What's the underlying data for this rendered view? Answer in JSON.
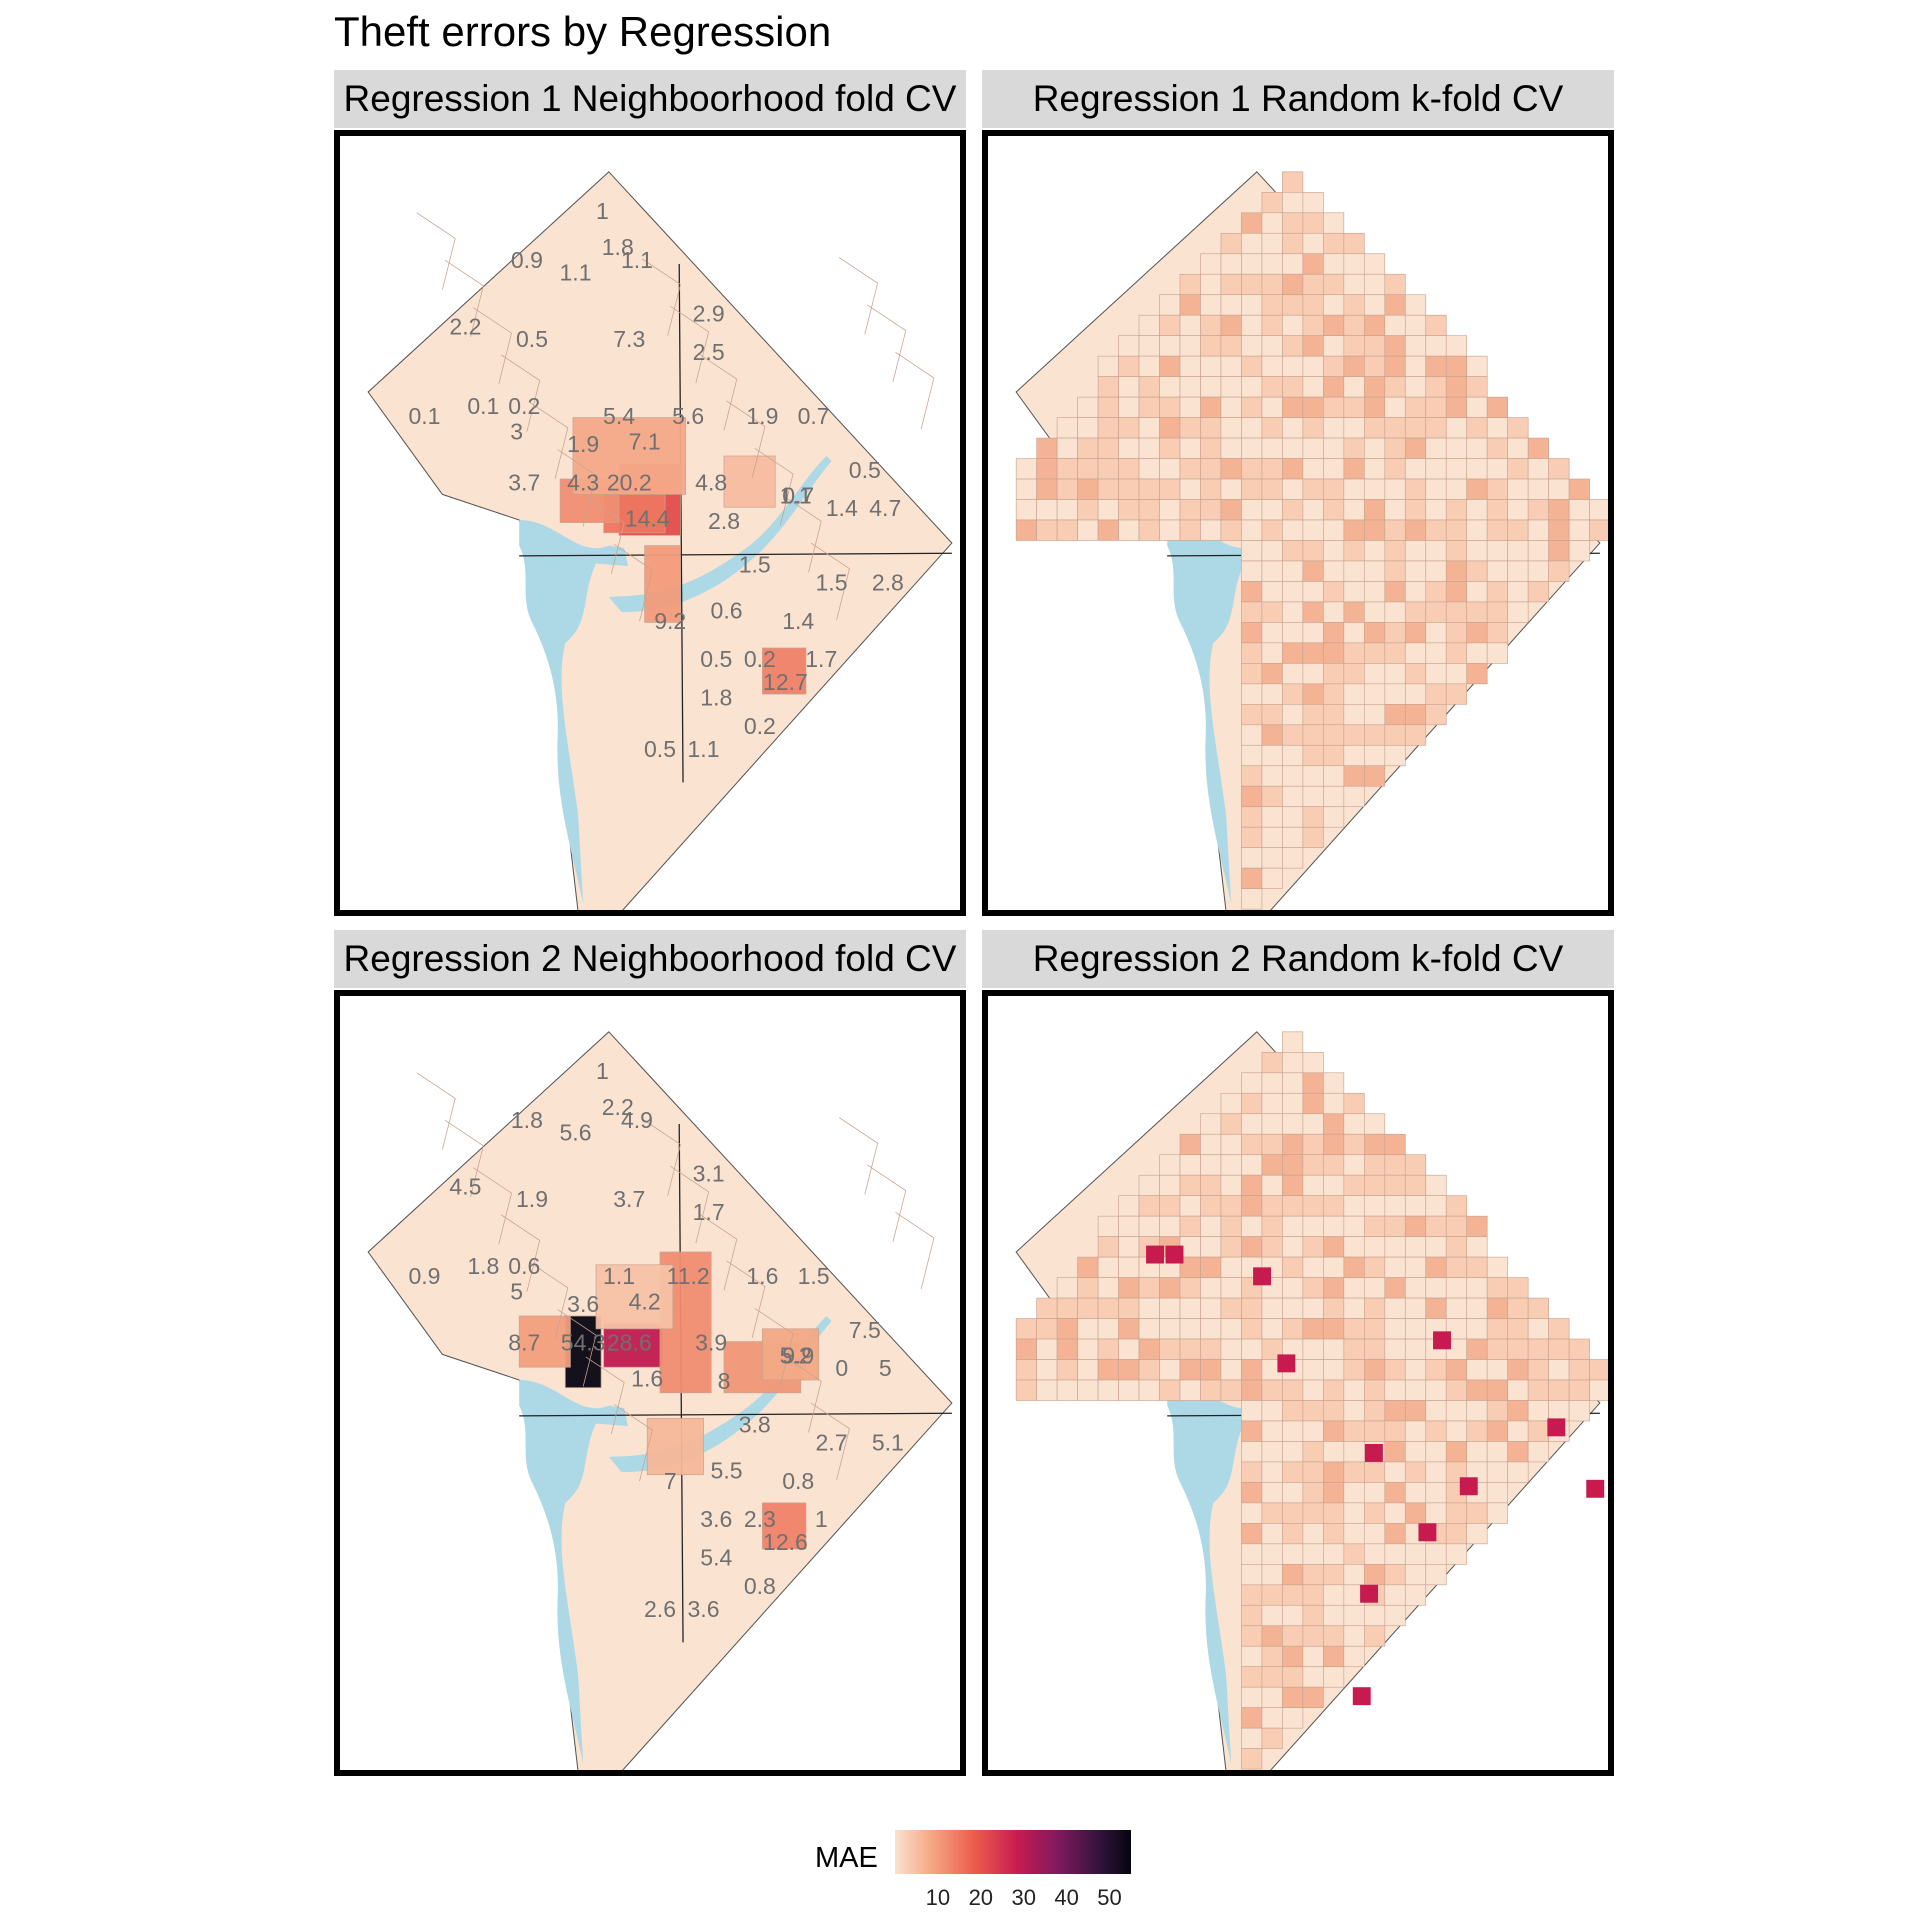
{
  "title": "Theft errors by Regression",
  "panels": [
    {
      "strip": "Regression 1 Neighboorhood fold CV",
      "type": "neighborhood",
      "labels": [
        "1",
        "1.8",
        "1.1",
        "0.9",
        "1.1",
        "2.2",
        "0.5",
        "7.3",
        "2.9",
        "2.5",
        "0.1",
        "0.1",
        "0.2",
        "3",
        "5.4",
        "5.6",
        "1.9",
        "0.7",
        "1.9",
        "7.1",
        "3.7",
        "4.3",
        "20.2",
        "4.8",
        "0.5",
        "1.1",
        "14.4",
        "2.8",
        "0.7",
        "1.4",
        "4.7",
        "1.5",
        "1.5",
        "2.8",
        "0.6",
        "9.2",
        "1.4",
        "0.5",
        "0.2",
        "1.7",
        "12.7",
        "1.8",
        "0.2",
        "0.5",
        "1.1"
      ]
    },
    {
      "strip": "Regression 1 Random k-fold CV",
      "type": "random"
    },
    {
      "strip": "Regression 2 Neighboorhood fold CV",
      "type": "neighborhood",
      "labels": [
        "1",
        "2.2",
        "4.9",
        "1.8",
        "5.6",
        "4.5",
        "1.9",
        "3.7",
        "3.1",
        "1.7",
        "0.9",
        "1.8",
        "0.6",
        "5",
        "1.1",
        "11.2",
        "1.6",
        "1.5",
        "3.6",
        "4.2",
        "8.7",
        "54.3",
        "28.6",
        "3.9",
        "7.5",
        "5.2",
        "1.6",
        "8",
        "9.9",
        "0",
        "5",
        "3.8",
        "2.7",
        "5.1",
        "5.5",
        "7",
        "0.8",
        "3.6",
        "2.3",
        "1",
        "12.6",
        "5.4",
        "0.8",
        "2.6",
        "3.6"
      ]
    },
    {
      "strip": "Regression 2 Random k-fold CV",
      "type": "random"
    }
  ],
  "legend": {
    "title": "MAE",
    "ticks": [
      "10",
      "20",
      "30",
      "40",
      "50"
    ],
    "min": 0,
    "max": 55
  },
  "colors": {
    "water": "#add8e6",
    "panel_border": "#000000",
    "strip_bg": "#d9d9d9",
    "label": "#707070"
  }
}
